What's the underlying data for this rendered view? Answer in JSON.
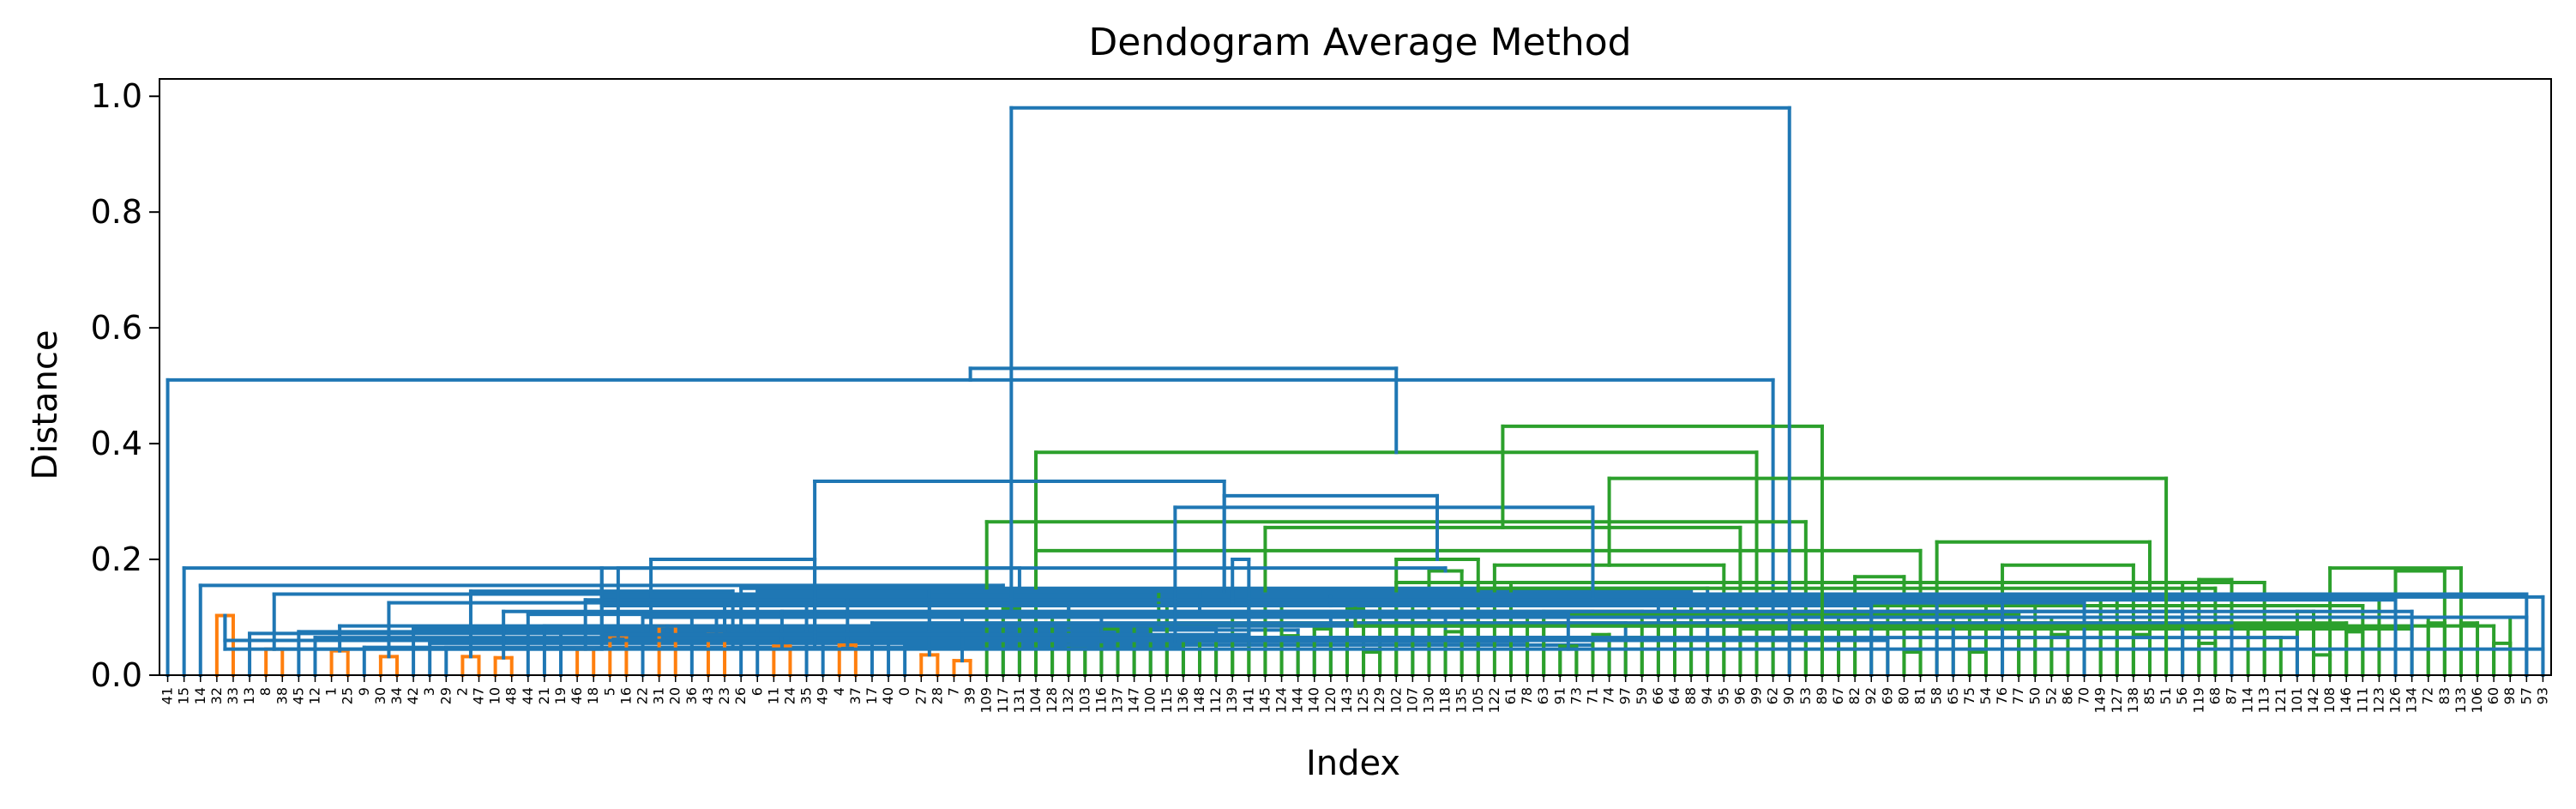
{
  "chart_data": {
    "type": "dendrogram",
    "title": "Dendogram Average Method",
    "xlabel": "Index",
    "ylabel": "Distance",
    "ylim": [
      0,
      1.03
    ],
    "yticks": [
      "0.0",
      "0.2",
      "0.4",
      "0.6",
      "0.8",
      "1.0"
    ],
    "colors": {
      "root": "#1f77b4",
      "cluster_1": "#ff7f0e",
      "cluster_2": "#2ca02c"
    },
    "leaves": [
      "41",
      "15",
      "14",
      "32",
      "33",
      "13",
      "8",
      "38",
      "45",
      "12",
      "1",
      "25",
      "9",
      "30",
      "34",
      "42",
      "3",
      "29",
      "2",
      "47",
      "10",
      "48",
      "44",
      "21",
      "19",
      "46",
      "18",
      "5",
      "16",
      "22",
      "31",
      "20",
      "36",
      "43",
      "23",
      "26",
      "6",
      "11",
      "24",
      "35",
      "49",
      "4",
      "37",
      "17",
      "40",
      "0",
      "27",
      "28",
      "7",
      "39",
      "109",
      "117",
      "131",
      "104",
      "128",
      "132",
      "103",
      "116",
      "137",
      "147",
      "100",
      "115",
      "136",
      "148",
      "112",
      "139",
      "141",
      "145",
      "124",
      "144",
      "140",
      "120",
      "143",
      "125",
      "129",
      "102",
      "107",
      "130",
      "118",
      "135",
      "105",
      "122",
      "61",
      "78",
      "63",
      "91",
      "73",
      "71",
      "74",
      "97",
      "59",
      "66",
      "64",
      "88",
      "94",
      "95",
      "96",
      "99",
      "62",
      "90",
      "53",
      "89",
      "67",
      "82",
      "92",
      "69",
      "80",
      "81",
      "58",
      "65",
      "75",
      "54",
      "76",
      "77",
      "50",
      "52",
      "86",
      "70",
      "149",
      "127",
      "138",
      "85",
      "51",
      "56",
      "119",
      "68",
      "87",
      "114",
      "113",
      "121",
      "101",
      "142",
      "108",
      "146",
      "111",
      "123",
      "126",
      "134",
      "72",
      "83",
      "133",
      "106",
      "60",
      "98",
      "57",
      "93"
    ],
    "merges": [
      {
        "ids": [
          3,
          4
        ],
        "h": 0.103
      },
      {
        "ids": [
          2,
          51
        ],
        "h": 0.155
      },
      {
        "ids": [
          1,
          52
        ],
        "h": 0.185
      },
      {
        "ids": [
          6,
          7
        ],
        "h": 0.045
      },
      {
        "ids": [
          5,
          54
        ],
        "h": 0.072
      },
      {
        "ids": [
          10,
          11
        ],
        "h": 0.042
      },
      {
        "ids": [
          13,
          14
        ],
        "h": 0.032
      },
      {
        "ids": [
          12,
          57
        ],
        "h": 0.048
      },
      {
        "ids": [
          56,
          58
        ],
        "h": 0.058
      },
      {
        "ids": [
          9,
          59
        ],
        "h": 0.065
      },
      {
        "ids": [
          8,
          60
        ],
        "h": 0.075
      },
      {
        "ids": [
          18,
          19
        ],
        "h": 0.032
      },
      {
        "ids": [
          17,
          62
        ],
        "h": 0.048
      },
      {
        "ids": [
          16,
          63
        ],
        "h": 0.055
      },
      {
        "ids": [
          15,
          64
        ],
        "h": 0.08
      },
      {
        "ids": [
          61,
          65
        ],
        "h": 0.108
      },
      {
        "ids": [
          55,
          66
        ],
        "h": 0.145
      },
      {
        "ids": [
          20,
          21
        ],
        "h": 0.03
      },
      {
        "ids": [
          25,
          26
        ],
        "h": 0.045
      },
      {
        "ids": [
          24,
          69
        ],
        "h": 0.078
      },
      {
        "ids": [
          23,
          70
        ],
        "h": 0.085
      },
      {
        "ids": [
          22,
          71
        ],
        "h": 0.105
      },
      {
        "ids": [
          27,
          28
        ],
        "h": 0.068
      },
      {
        "ids": [
          72,
          73
        ],
        "h": 0.115
      },
      {
        "ids": [
          68,
          74
        ],
        "h": 0.135
      },
      {
        "ids": [
          30,
          31
        ],
        "h": 0.085
      },
      {
        "ids": [
          29,
          76
        ],
        "h": 0.1
      },
      {
        "ids": [
          33,
          34
        ],
        "h": 0.07
      },
      {
        "ids": [
          32,
          78
        ],
        "h": 0.1
      },
      {
        "ids": [
          77,
          79
        ],
        "h": 0.18
      },
      {
        "ids": [
          75,
          80
        ],
        "h": 0.2
      },
      {
        "ids": [
          37,
          38
        ],
        "h": 0.05
      },
      {
        "ids": [
          41,
          42
        ],
        "h": 0.052
      },
      {
        "ids": [
          40,
          83
        ],
        "h": 0.058
      },
      {
        "ids": [
          46,
          47
        ],
        "h": 0.035
      },
      {
        "ids": [
          48,
          49
        ],
        "h": 0.025
      },
      {
        "ids": [
          85,
          86
        ],
        "h": 0.045
      },
      {
        "ids": [
          45,
          87
        ],
        "h": 0.052
      },
      {
        "ids": [
          44,
          88
        ],
        "h": 0.065
      },
      {
        "ids": [
          43,
          89
        ],
        "h": 0.09
      },
      {
        "ids": [
          84,
          90
        ],
        "h": 0.11
      },
      {
        "ids": [
          39,
          91
        ],
        "h": 0.125
      },
      {
        "ids": [
          82,
          92
        ],
        "h": 0.13
      },
      {
        "ids": [
          36,
          93
        ],
        "h": 0.145
      },
      {
        "ids": [
          35,
          94
        ],
        "h": 0.15
      },
      {
        "ids": [
          81,
          95
        ],
        "h": 0.19
      },
      {
        "ids": [
          67,
          96
        ],
        "h": 0.255
      },
      {
        "ids": [
          53,
          97
        ],
        "h": 0.385
      },
      {
        "ids": [
          0,
          98
        ],
        "h": 0.51
      },
      {
        "ids": [
          51,
          52
        ],
        "h": 0.115
      },
      {
        "ids": [
          50,
          100
        ],
        "h": 0.265
      },
      {
        "ids": [
          55,
          56
        ],
        "h": 0.045
      },
      {
        "ids": [
          54,
          102
        ],
        "h": 0.1
      },
      {
        "ids": [
          57,
          58
        ],
        "h": 0.08
      },
      {
        "ids": [
          59,
          60
        ],
        "h": 0.085
      },
      {
        "ids": [
          104,
          105
        ],
        "h": 0.125
      },
      {
        "ids": [
          103,
          106
        ],
        "h": 0.17
      },
      {
        "ids": [
          53,
          107
        ],
        "h": 0.215
      },
      {
        "ids": [
          62,
          63
        ],
        "h": 0.06
      },
      {
        "ids": [
          64,
          65
        ],
        "h": 0.06
      },
      {
        "ids": [
          109,
          110
        ],
        "h": 0.1
      },
      {
        "ids": [
          61,
          111
        ],
        "h": 0.125
      },
      {
        "ids": [
          68,
          69
        ],
        "h": 0.068
      },
      {
        "ids": [
          67,
          113
        ],
        "h": 0.105
      },
      {
        "ids": [
          70,
          71
        ],
        "h": 0.08
      },
      {
        "ids": [
          73,
          74
        ],
        "h": 0.04
      },
      {
        "ids": [
          72,
          116
        ],
        "h": 0.085
      },
      {
        "ids": [
          115,
          117
        ],
        "h": 0.1
      },
      {
        "ids": [
          114,
          118
        ],
        "h": 0.13
      },
      {
        "ids": [
          66,
          119
        ],
        "h": 0.14
      },
      {
        "ids": [
          112,
          120
        ],
        "h": 0.19
      },
      {
        "ids": [
          108,
          121
        ],
        "h": 0.23
      },
      {
        "ids": [
          76,
          77
        ],
        "h": 0.125
      },
      {
        "ids": [
          75,
          123
        ],
        "h": 0.16
      },
      {
        "ids": [
          78,
          79
        ],
        "h": 0.075
      },
      {
        "ids": [
          125,
          80
        ],
        "h": 0.15
      },
      {
        "ids": [
          124,
          126
        ],
        "h": 0.165
      },
      {
        "ids": [
          83,
          84
        ],
        "h": 0.1
      },
      {
        "ids": [
          82,
          128
        ],
        "h": 0.16
      },
      {
        "ids": [
          85,
          86
        ],
        "h": 0.05
      },
      {
        "ids": [
          87,
          88
        ],
        "h": 0.07
      },
      {
        "ids": [
          130,
          131
        ],
        "h": 0.11
      },
      {
        "ids": [
          89,
          90
        ],
        "h": 0.065
      },
      {
        "ids": [
          91,
          133
        ],
        "h": 0.09
      },
      {
        "ids": [
          92,
          134
        ],
        "h": 0.12
      },
      {
        "ids": [
          93,
          135
        ],
        "h": 0.135
      },
      {
        "ids": [
          94,
          95
        ],
        "h": 0.06
      },
      {
        "ids": [
          96,
          137
        ],
        "h": 0.08
      },
      {
        "ids": [
          97,
          138
        ],
        "h": 0.1
      },
      {
        "ids": [
          136,
          139
        ],
        "h": 0.18
      },
      {
        "ids": [
          132,
          140
        ],
        "h": 0.185
      },
      {
        "ids": [
          99,
          100
        ],
        "h": 0.08
      },
      {
        "ids": [
          101,
          142
        ],
        "h": 0.085
      },
      {
        "ids": [
          98,
          143
        ],
        "h": 0.1
      },
      {
        "ids": [
          102,
          103
        ],
        "h": 0.045
      },
      {
        "ids": [
          106,
          107
        ],
        "h": 0.04
      },
      {
        "ids": [
          105,
          146
        ],
        "h": 0.06
      },
      {
        "ids": [
          104,
          147
        ],
        "h": 0.12
      },
      {
        "ids": [
          145,
          148
        ],
        "h": 0.135
      },
      {
        "ids": [
          144,
          149
        ],
        "h": 0.14
      },
      {
        "ids": [
          110,
          111
        ],
        "h": 0.04
      },
      {
        "ids": [
          109,
          151
        ],
        "h": 0.085
      },
      {
        "ids": [
          108,
          152
        ],
        "h": 0.125
      },
      {
        "ids": [
          113,
          114
        ],
        "h": 0.065
      },
      {
        "ids": [
          115,
          116
        ],
        "h": 0.07
      },
      {
        "ids": [
          154,
          155
        ],
        "h": 0.1
      },
      {
        "ids": [
          112,
          156
        ],
        "h": 0.13
      },
      {
        "ids": [
          153,
          157
        ],
        "h": 0.145
      },
      {
        "ids": [
          150,
          158
        ],
        "h": 0.2
      },
      {
        "ids": [
          118,
          119
        ],
        "h": 0.085
      },
      {
        "ids": [
          117,
          160
        ],
        "h": 0.125
      },
      {
        "ids": [
          120,
          121
        ],
        "h": 0.07
      },
      {
        "ids": [
          122,
          162
        ],
        "h": 0.09
      },
      {
        "ids": [
          123,
          163
        ],
        "h": 0.11
      },
      {
        "ids": [
          124,
          125
        ],
        "h": 0.055
      },
      {
        "ids": [
          126,
          165
        ],
        "h": 0.09
      },
      {
        "ids": [
          164,
          166
        ],
        "h": 0.13
      },
      {
        "ids": [
          161,
          167
        ],
        "h": 0.145
      },
      {
        "ids": [
          128,
          129
        ],
        "h": 0.065
      },
      {
        "ids": [
          127,
          169
        ],
        "h": 0.085
      },
      {
        "ids": [
          131,
          132
        ],
        "h": 0.035
      },
      {
        "ids": [
          130,
          171
        ],
        "h": 0.065
      },
      {
        "ids": [
          133,
          134
        ],
        "h": 0.075
      },
      {
        "ids": [
          172,
          173
        ],
        "h": 0.1
      },
      {
        "ids": [
          170,
          174
        ],
        "h": 0.12
      },
      {
        "ids": [
          175,
          168
        ],
        "h": 0.185
      },
      {
        "ids": [
          138,
          139
        ],
        "h": 0.09
      },
      {
        "ids": [
          137,
          177
        ],
        "h": 0.11
      },
      {
        "ids": [
          136,
          178
        ],
        "h": 0.13
      },
      {
        "ids": [
          140,
          141
        ],
        "h": 0.09
      },
      {
        "ids": [
          142,
          143
        ],
        "h": 0.055
      },
      {
        "ids": [
          144,
          181
        ],
        "h": 0.1
      },
      {
        "ids": [
          180,
          182
        ],
        "h": 0.105
      },
      {
        "ids": [
          145,
          146
        ],
        "h": 0.045
      },
      {
        "ids": [
          147,
          184
        ],
        "h": 0.07
      },
      {
        "ids": [
          148,
          149
        ],
        "h": 0.045
      },
      {
        "ids": [
          185,
          186
        ],
        "h": 0.11
      },
      {
        "ids": [
          183,
          187
        ],
        "h": 0.2
      },
      {
        "ids": [
          179,
          188
        ],
        "h": 0.29
      },
      {
        "ids": [
          176,
          189
        ],
        "h": 0.31
      },
      {
        "ids": [
          159,
          190
        ],
        "h": 0.335
      },
      {
        "ids": [
          122,
          191
        ],
        "h": 0.34
      },
      {
        "ids": [
          101,
          192
        ],
        "h": 0.43
      },
      {
        "ids": [
          193,
          194
        ],
        "h": 0.53
      },
      {
        "ids": [
          99,
          195
        ],
        "h": 0.98
      }
    ]
  }
}
